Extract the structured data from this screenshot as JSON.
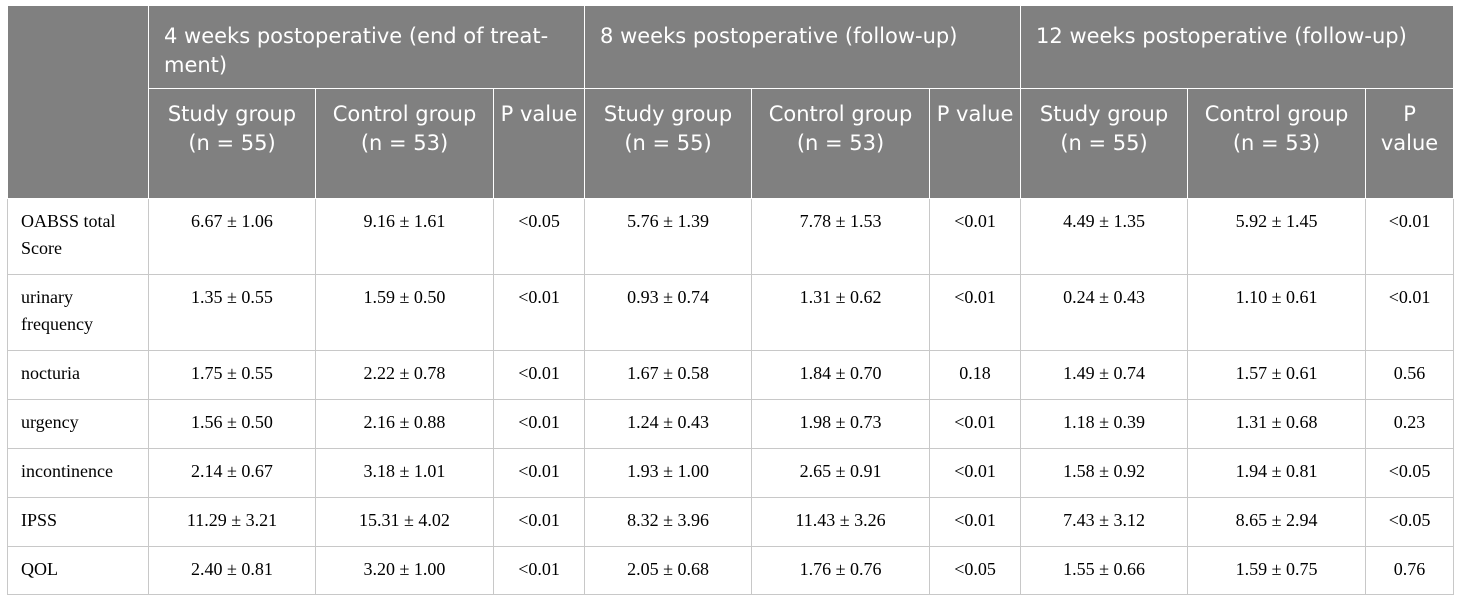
{
  "table": {
    "period_headers": [
      "4 weeks postoperative (end of treat-ment)",
      "8 weeks postoperative (follow-up)",
      "12 weeks postoperative (follow-up)"
    ],
    "sub_headers": {
      "study": "Study group (n = 55)",
      "control": "Control group (n = 53)",
      "p": "P value"
    },
    "rows": [
      {
        "label": "OABSS total Score",
        "values": [
          "6.67 ± 1.06",
          "9.16 ± 1.61",
          "<0.05",
          "5.76 ± 1.39",
          "7.78 ± 1.53",
          "<0.01",
          "4.49 ± 1.35",
          "5.92 ± 1.45",
          "<0.01"
        ]
      },
      {
        "label": "urinary frequency",
        "values": [
          "1.35 ± 0.55",
          "1.59 ± 0.50",
          "<0.01",
          "0.93 ± 0.74",
          "1.31 ± 0.62",
          "<0.01",
          "0.24 ± 0.43",
          "1.10 ± 0.61",
          "<0.01"
        ]
      },
      {
        "label": "nocturia",
        "values": [
          "1.75 ± 0.55",
          "2.22 ± 0.78",
          "<0.01",
          "1.67 ± 0.58",
          "1.84 ± 0.70",
          "0.18",
          "1.49 ± 0.74",
          "1.57 ± 0.61",
          "0.56"
        ]
      },
      {
        "label": "urgency",
        "values": [
          "1.56 ± 0.50",
          "2.16 ± 0.88",
          "<0.01",
          "1.24 ± 0.43",
          "1.98 ± 0.73",
          "<0.01",
          "1.18 ± 0.39",
          "1.31 ± 0.68",
          "0.23"
        ]
      },
      {
        "label": "incontinence",
        "values": [
          "2.14 ± 0.67",
          "3.18 ± 1.01",
          "<0.01",
          "1.93 ± 1.00",
          "2.65 ± 0.91",
          "<0.01",
          "1.58 ± 0.92",
          "1.94 ± 0.81",
          "<0.05"
        ]
      },
      {
        "label": "IPSS",
        "values": [
          "11.29 ± 3.21",
          "15.31 ± 4.02",
          "<0.01",
          "8.32 ± 3.96",
          "11.43 ± 3.26",
          "<0.01",
          "7.43 ± 3.12",
          "8.65 ± 2.94",
          "<0.05"
        ]
      },
      {
        "label": "QOL",
        "values": [
          "2.40 ± 0.81",
          "3.20 ± 1.00",
          "<0.01",
          "2.05 ± 0.68",
          "1.76 ± 0.76",
          "<0.05",
          "1.55 ± 0.66",
          "1.59 ± 0.75",
          "0.76"
        ]
      }
    ]
  }
}
